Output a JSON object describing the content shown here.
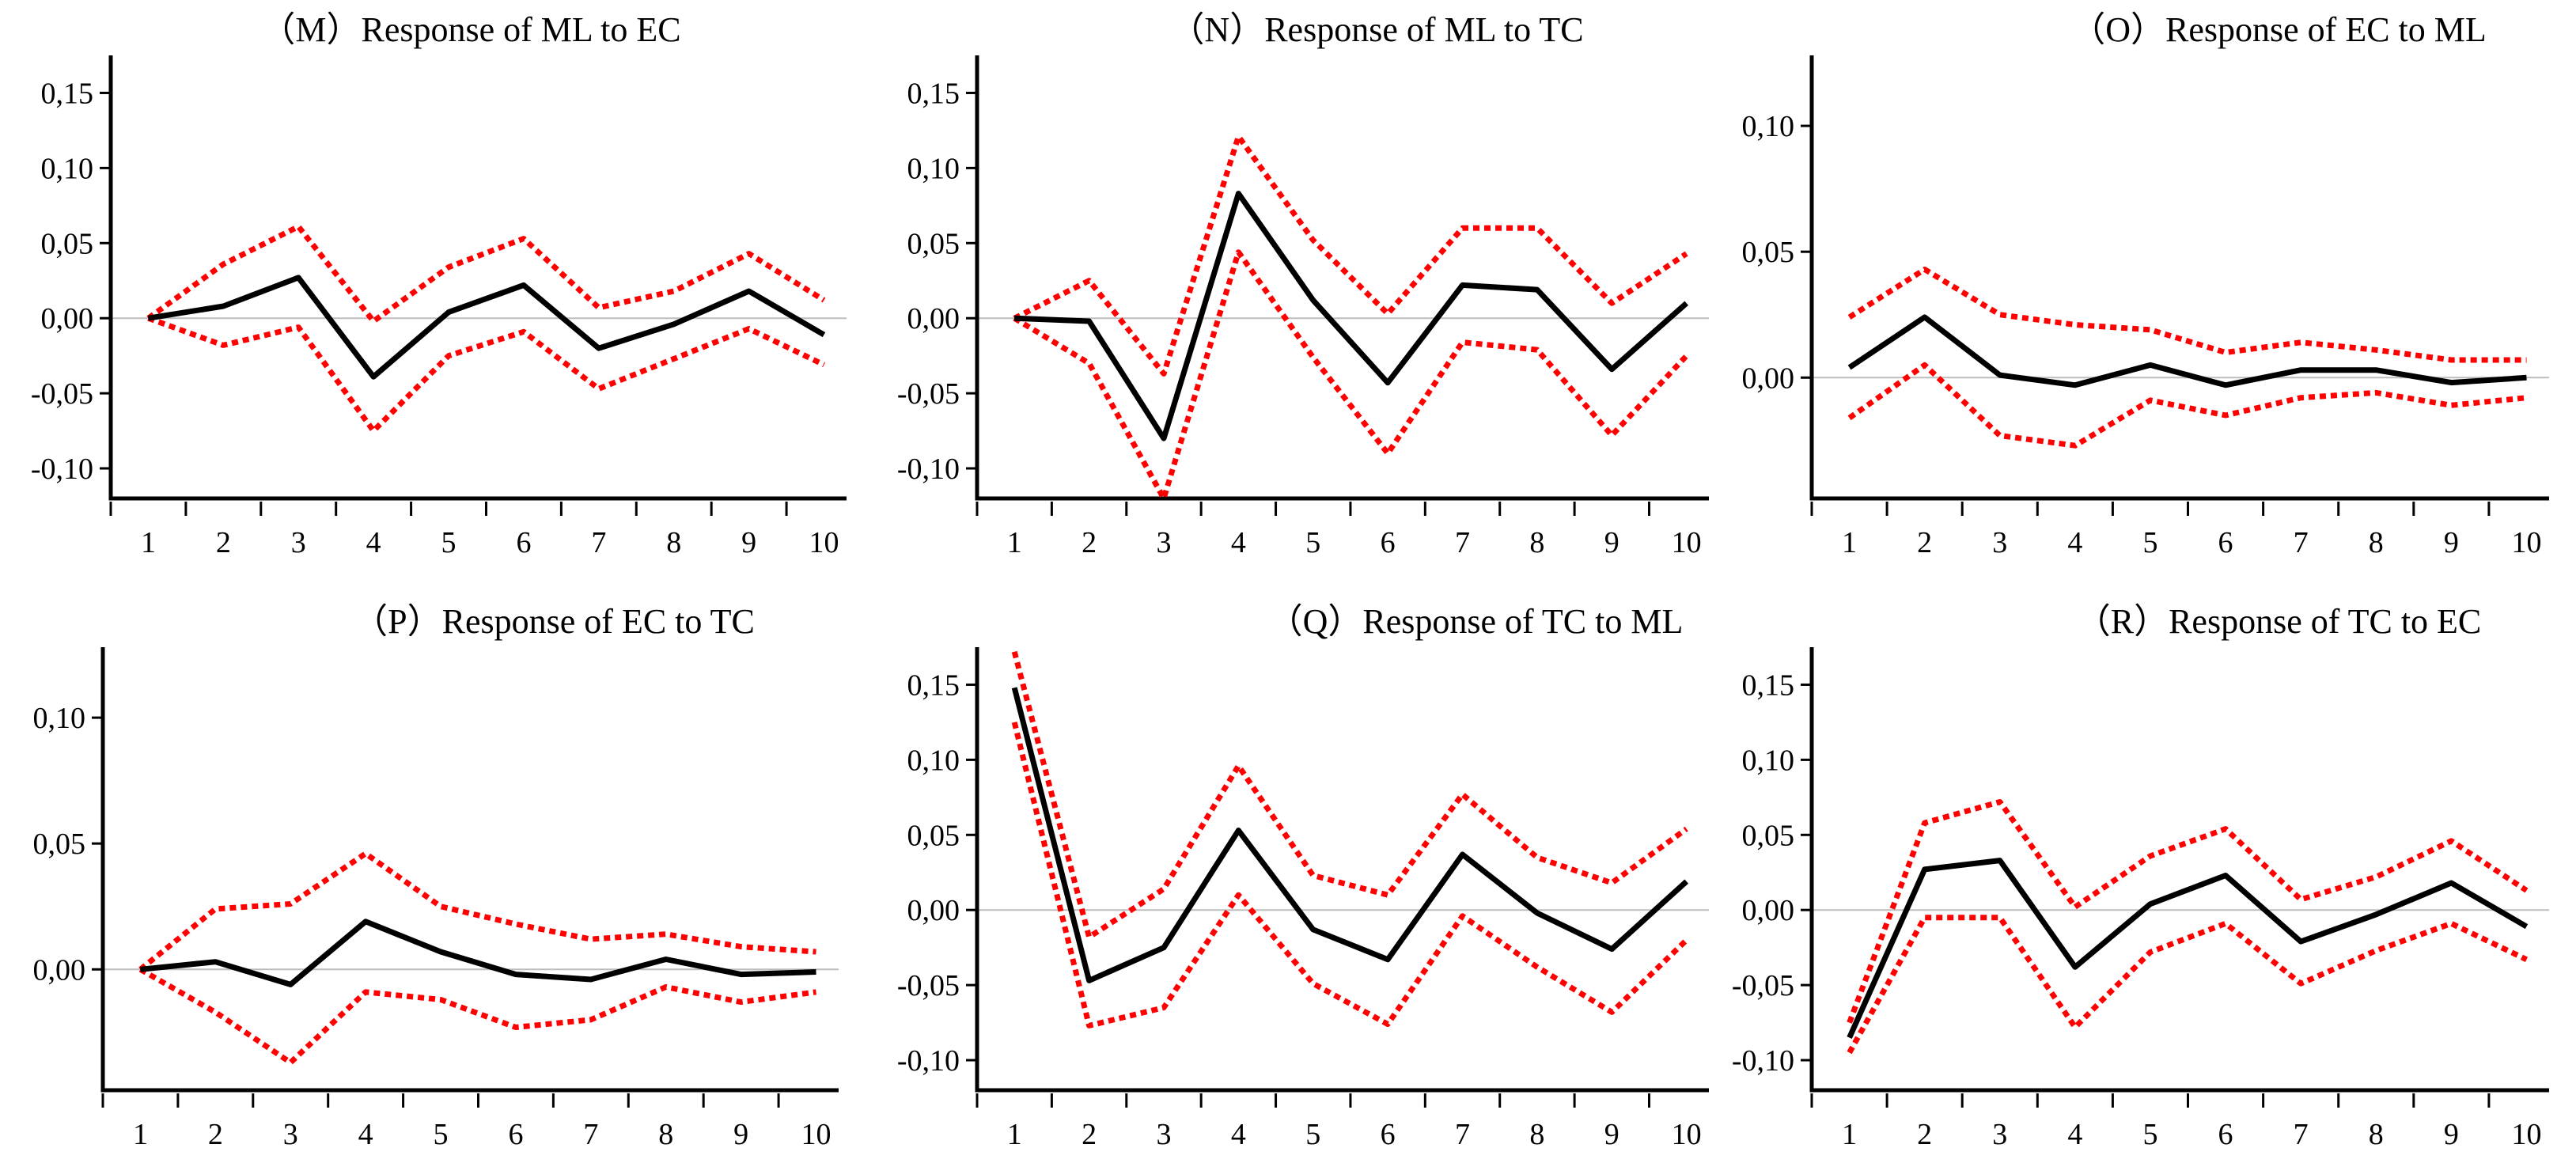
{
  "chart_data": [
    {
      "type": "line",
      "panel": "M",
      "title": "（M）Response of ML to EC",
      "x": [
        1,
        2,
        3,
        4,
        5,
        6,
        7,
        8,
        9,
        10
      ],
      "x_tick_labels": [
        "1",
        "2",
        "3",
        "4",
        "5",
        "6",
        "7",
        "8",
        "9",
        "10"
      ],
      "y_tick_values": [
        -0.1,
        -0.05,
        0.0,
        0.05,
        0.1,
        0.15
      ],
      "y_tick_labels": [
        "-0,10",
        "-0,05",
        "0,00",
        "0,05",
        "0,10",
        "0,15"
      ],
      "ylim": [
        -0.12,
        0.175
      ],
      "xlim": [
        0.5,
        10.3
      ],
      "series": [
        {
          "name": "response",
          "values": [
            0.0,
            0.008,
            0.027,
            -0.039,
            0.004,
            0.022,
            -0.02,
            -0.004,
            0.018,
            -0.011
          ]
        },
        {
          "name": "upper band",
          "values": [
            0.0,
            0.036,
            0.061,
            -0.002,
            0.034,
            0.053,
            0.007,
            0.018,
            0.043,
            0.012
          ]
        },
        {
          "name": "lower band",
          "values": [
            0.0,
            -0.018,
            -0.006,
            -0.075,
            -0.025,
            -0.009,
            -0.047,
            -0.027,
            -0.007,
            -0.031
          ]
        }
      ]
    },
    {
      "type": "line",
      "panel": "N",
      "title": "（N）Response of ML to TC",
      "x": [
        1,
        2,
        3,
        4,
        5,
        6,
        7,
        8,
        9,
        10
      ],
      "x_tick_labels": [
        "1",
        "2",
        "3",
        "4",
        "5",
        "6",
        "7",
        "8",
        "9",
        "10"
      ],
      "y_tick_values": [
        -0.1,
        -0.05,
        0.0,
        0.05,
        0.1,
        0.15
      ],
      "y_tick_labels": [
        "-0,10",
        "-0,05",
        "0,00",
        "0,05",
        "0,10",
        "0,15"
      ],
      "ylim": [
        -0.12,
        0.175
      ],
      "xlim": [
        0.5,
        10.3
      ],
      "series": [
        {
          "name": "response",
          "values": [
            0.0,
            -0.002,
            -0.08,
            0.083,
            0.012,
            -0.043,
            0.022,
            0.019,
            -0.034,
            0.01
          ]
        },
        {
          "name": "upper band",
          "values": [
            0.0,
            0.025,
            -0.037,
            0.121,
            0.052,
            0.003,
            0.06,
            0.06,
            0.01,
            0.043
          ]
        },
        {
          "name": "lower band",
          "values": [
            0.0,
            -0.03,
            -0.12,
            0.044,
            -0.026,
            -0.09,
            -0.016,
            -0.021,
            -0.078,
            -0.025
          ]
        }
      ]
    },
    {
      "type": "line",
      "panel": "O",
      "title": "（O）Response of EC to ML",
      "x": [
        1,
        2,
        3,
        4,
        5,
        6,
        7,
        8,
        9,
        10
      ],
      "x_tick_labels": [
        "1",
        "2",
        "3",
        "4",
        "5",
        "6",
        "7",
        "8",
        "9",
        "10"
      ],
      "y_tick_values": [
        0.0,
        0.05,
        0.1
      ],
      "y_tick_labels": [
        "0,00",
        "0,05",
        "0,10"
      ],
      "ylim": [
        -0.048,
        0.128
      ],
      "xlim": [
        0.5,
        10.3
      ],
      "series": [
        {
          "name": "response",
          "values": [
            0.004,
            0.024,
            0.001,
            -0.003,
            0.005,
            -0.003,
            0.003,
            0.003,
            -0.002,
            0.0
          ]
        },
        {
          "name": "upper band",
          "values": [
            0.024,
            0.043,
            0.025,
            0.021,
            0.019,
            0.01,
            0.014,
            0.011,
            0.007,
            0.007
          ]
        },
        {
          "name": "lower band",
          "values": [
            -0.016,
            0.005,
            -0.023,
            -0.027,
            -0.009,
            -0.015,
            -0.008,
            -0.006,
            -0.011,
            -0.008
          ]
        }
      ]
    },
    {
      "type": "line",
      "panel": "P",
      "title": "（P）Response of EC to TC",
      "x": [
        1,
        2,
        3,
        4,
        5,
        6,
        7,
        8,
        9,
        10
      ],
      "x_tick_labels": [
        "1",
        "2",
        "3",
        "4",
        "5",
        "6",
        "7",
        "8",
        "9",
        "10"
      ],
      "y_tick_values": [
        0.0,
        0.05,
        0.1
      ],
      "y_tick_labels": [
        "0,00",
        "0,05",
        "0,10"
      ],
      "ylim": [
        -0.048,
        0.128
      ],
      "xlim": [
        0.5,
        10.3
      ],
      "series": [
        {
          "name": "response",
          "values": [
            0.0,
            0.003,
            -0.006,
            0.019,
            0.007,
            -0.002,
            -0.004,
            0.004,
            -0.002,
            -0.001
          ]
        },
        {
          "name": "upper band",
          "values": [
            0.0,
            0.024,
            0.026,
            0.046,
            0.025,
            0.018,
            0.012,
            0.014,
            0.009,
            0.007
          ]
        },
        {
          "name": "lower band",
          "values": [
            0.0,
            -0.017,
            -0.037,
            -0.009,
            -0.012,
            -0.023,
            -0.02,
            -0.007,
            -0.013,
            -0.009
          ]
        }
      ]
    },
    {
      "type": "line",
      "panel": "Q",
      "title": "（Q）Response of TC to ML",
      "x": [
        1,
        2,
        3,
        4,
        5,
        6,
        7,
        8,
        9,
        10
      ],
      "x_tick_labels": [
        "1",
        "2",
        "3",
        "4",
        "5",
        "6",
        "7",
        "8",
        "9",
        "10"
      ],
      "y_tick_values": [
        -0.1,
        -0.05,
        0.0,
        0.05,
        0.1,
        0.15
      ],
      "y_tick_labels": [
        "-0,10",
        "-0,05",
        "0,00",
        "0,05",
        "0,10",
        "0,15"
      ],
      "ylim": [
        -0.12,
        0.175
      ],
      "xlim": [
        0.5,
        10.3
      ],
      "series": [
        {
          "name": "response",
          "values": [
            0.148,
            -0.047,
            -0.025,
            0.053,
            -0.013,
            -0.033,
            0.037,
            -0.002,
            -0.026,
            0.019
          ]
        },
        {
          "name": "upper band",
          "values": [
            0.172,
            -0.018,
            0.014,
            0.096,
            0.023,
            0.01,
            0.077,
            0.035,
            0.018,
            0.054
          ]
        },
        {
          "name": "lower band",
          "values": [
            0.125,
            -0.077,
            -0.065,
            0.01,
            -0.049,
            -0.076,
            -0.004,
            -0.038,
            -0.068,
            -0.02
          ]
        }
      ]
    },
    {
      "type": "line",
      "panel": "R",
      "title": "（R）Response of TC to EC",
      "x": [
        1,
        2,
        3,
        4,
        5,
        6,
        7,
        8,
        9,
        10
      ],
      "x_tick_labels": [
        "1",
        "2",
        "3",
        "4",
        "5",
        "6",
        "7",
        "8",
        "9",
        "10"
      ],
      "y_tick_values": [
        -0.1,
        -0.05,
        0.0,
        0.05,
        0.1,
        0.15
      ],
      "y_tick_labels": [
        "-0,10",
        "-0,05",
        "0,00",
        "0,05",
        "0,10",
        "0,15"
      ],
      "ylim": [
        -0.12,
        0.175
      ],
      "xlim": [
        0.5,
        10.3
      ],
      "series": [
        {
          "name": "response",
          "values": [
            -0.085,
            0.027,
            0.033,
            -0.038,
            0.004,
            0.023,
            -0.021,
            -0.003,
            0.018,
            -0.011
          ]
        },
        {
          "name": "upper band",
          "values": [
            -0.075,
            0.058,
            0.072,
            0.002,
            0.036,
            0.054,
            0.007,
            0.022,
            0.046,
            0.013
          ]
        },
        {
          "name": "lower band",
          "values": [
            -0.095,
            -0.005,
            -0.005,
            -0.078,
            -0.028,
            -0.009,
            -0.049,
            -0.027,
            -0.009,
            -0.033
          ]
        }
      ]
    }
  ]
}
